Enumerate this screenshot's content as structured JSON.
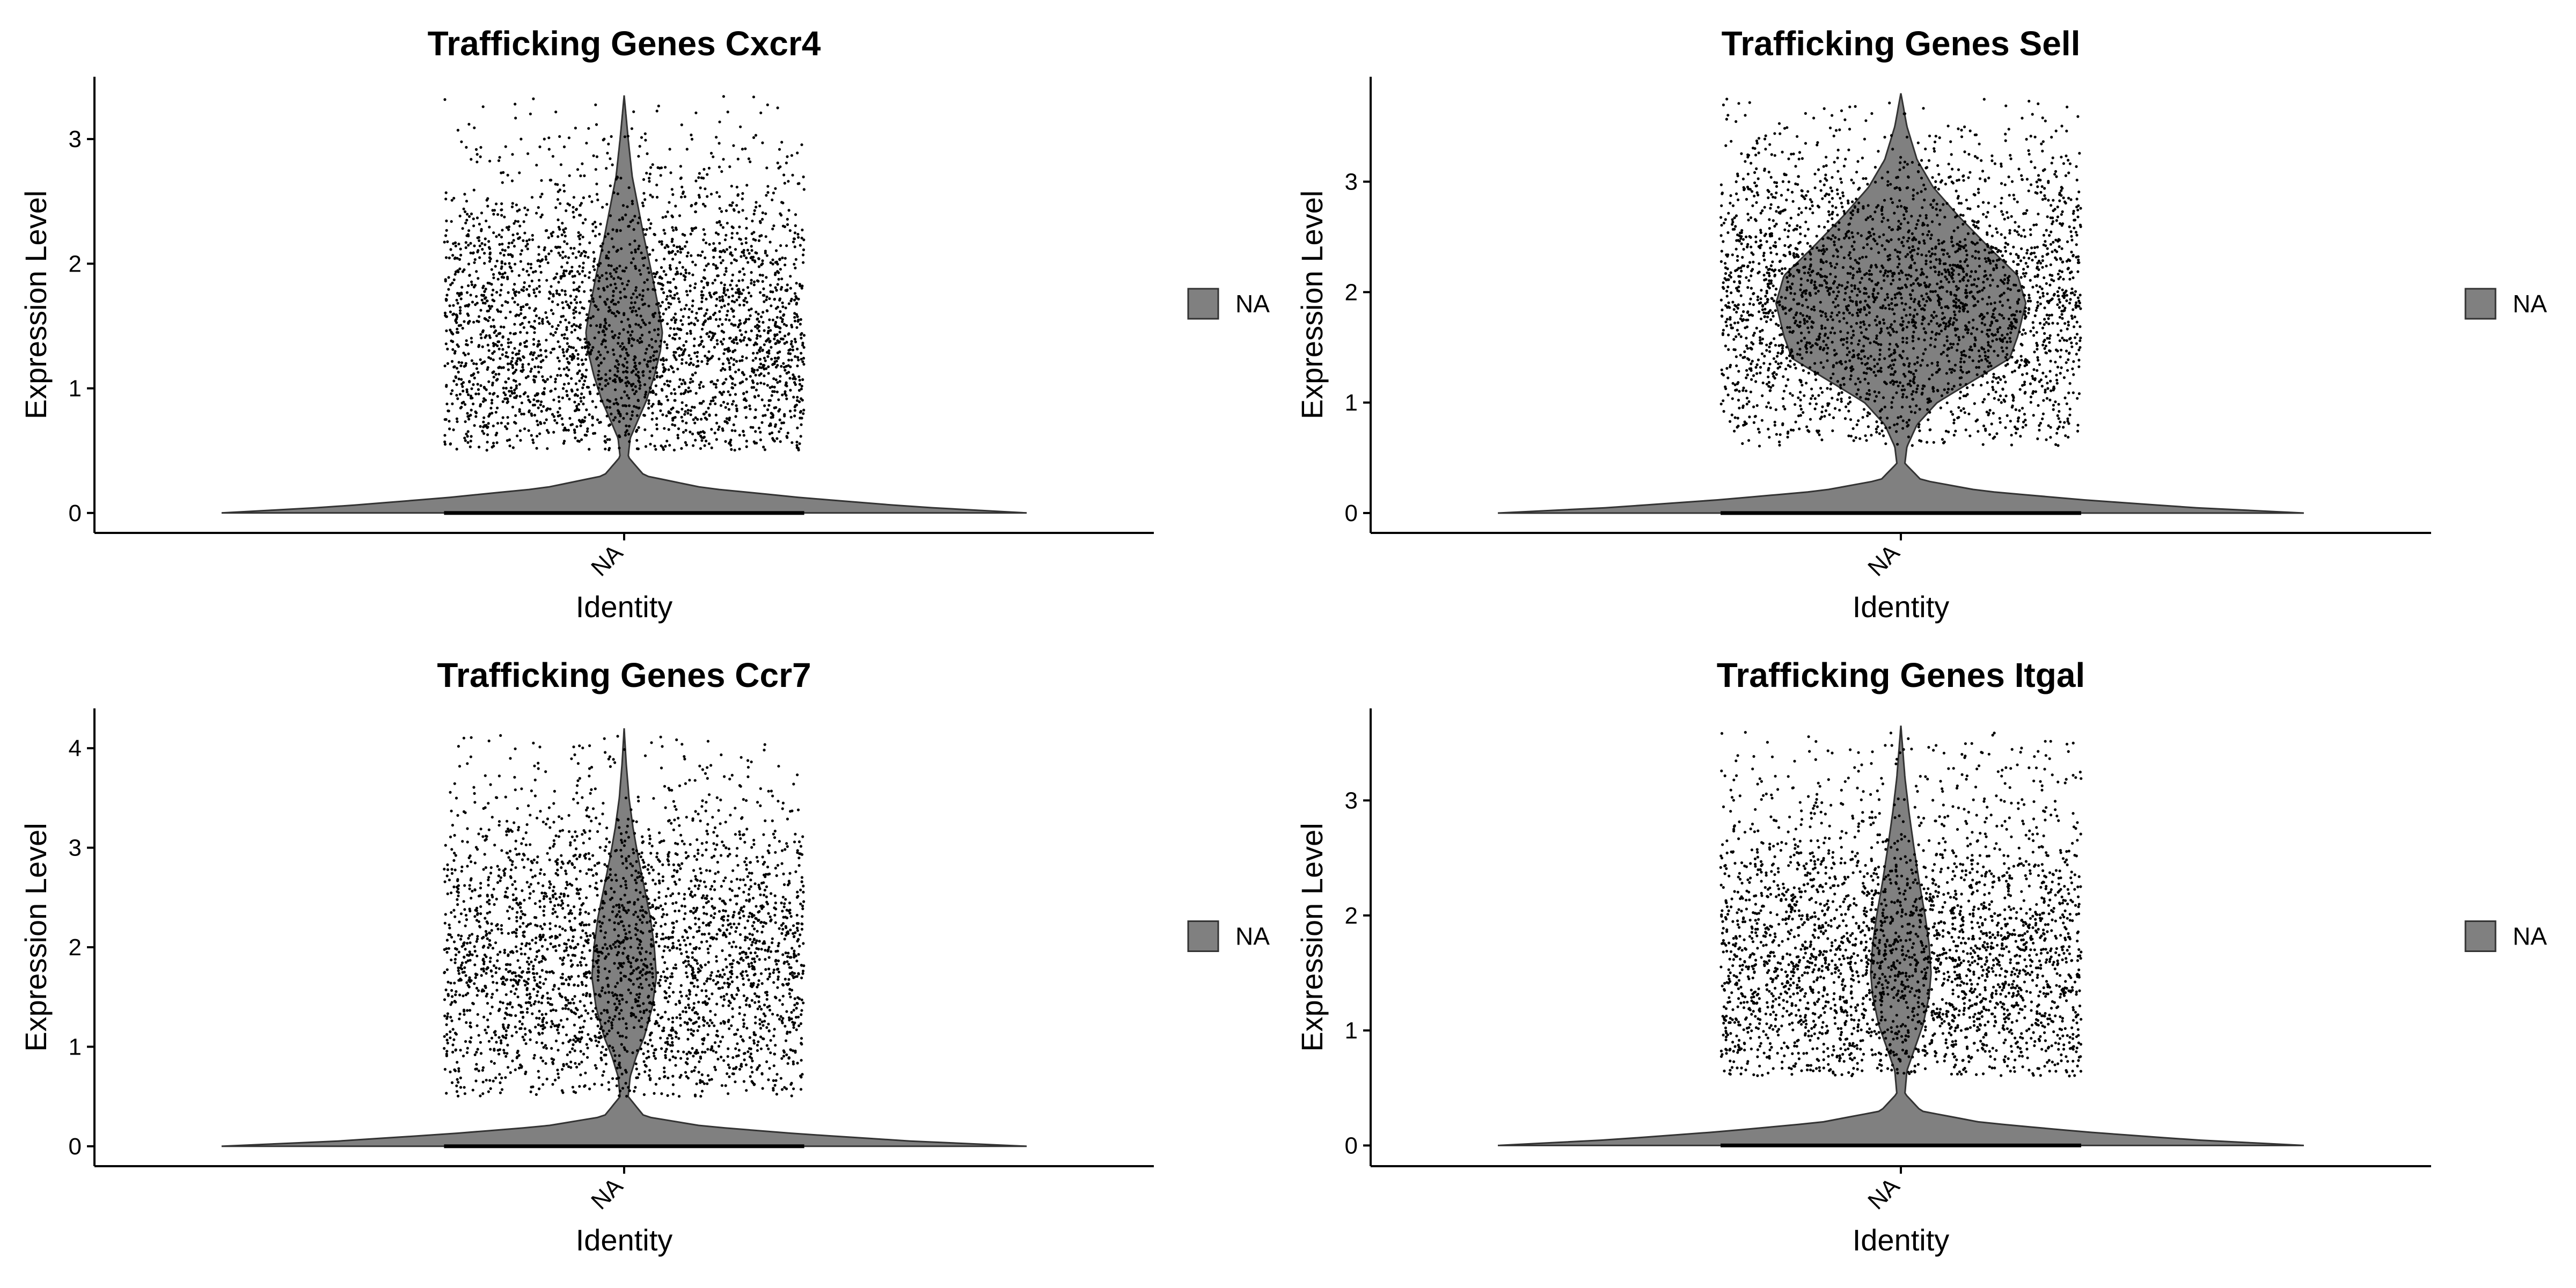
{
  "colors": {
    "violin_fill": "#808080",
    "violin_stroke": "#333333",
    "points": "#000000",
    "axis": "#000000",
    "background": "#ffffff"
  },
  "chart_data": [
    {
      "type": "violin",
      "title": "Trafficking Genes Cxcr4",
      "xlabel": "Identity",
      "ylabel": "Expression Level",
      "categories": [
        "NA"
      ],
      "x_tick_labels": [
        "NA"
      ],
      "y_ticks": [
        0,
        1,
        2,
        3
      ],
      "y_tick_labels": [
        "0",
        "1",
        "2",
        "3"
      ],
      "ylim": [
        -0.16,
        3.5
      ],
      "y_max": 3.35,
      "density_profile": [
        [
          0,
          1.0
        ],
        [
          0.05,
          0.72
        ],
        [
          0.12,
          0.45
        ],
        [
          0.2,
          0.2
        ],
        [
          0.3,
          0.05
        ],
        [
          0.45,
          0.01
        ],
        [
          0.6,
          0.015
        ],
        [
          0.75,
          0.035
        ],
        [
          0.9,
          0.055
        ],
        [
          1.1,
          0.075
        ],
        [
          1.3,
          0.09
        ],
        [
          1.45,
          0.095
        ],
        [
          1.65,
          0.085
        ],
        [
          1.9,
          0.07
        ],
        [
          2.2,
          0.05
        ],
        [
          2.45,
          0.035
        ],
        [
          2.7,
          0.02
        ],
        [
          3.0,
          0.01
        ],
        [
          3.35,
          0.0
        ]
      ],
      "points_range": [
        0.5,
        3.35
      ],
      "points_center": 1.4,
      "legend": [
        {
          "label": "NA",
          "color": "#808080"
        }
      ],
      "legend_placement": "right",
      "grid": false
    },
    {
      "type": "violin",
      "title": "Trafficking Genes Sell",
      "xlabel": "Identity",
      "ylabel": "Expression Level",
      "categories": [
        "NA"
      ],
      "x_tick_labels": [
        "NA"
      ],
      "y_ticks": [
        0,
        1,
        2,
        3
      ],
      "y_tick_labels": [
        "0",
        "1",
        "2",
        "3"
      ],
      "ylim": [
        -0.18,
        3.95
      ],
      "y_max": 3.8,
      "density_profile": [
        [
          0,
          1.0
        ],
        [
          0.05,
          0.72
        ],
        [
          0.12,
          0.45
        ],
        [
          0.2,
          0.2
        ],
        [
          0.3,
          0.05
        ],
        [
          0.45,
          0.01
        ],
        [
          0.6,
          0.015
        ],
        [
          0.8,
          0.04
        ],
        [
          1.0,
          0.09
        ],
        [
          1.2,
          0.18
        ],
        [
          1.4,
          0.27
        ],
        [
          1.6,
          0.29
        ],
        [
          1.9,
          0.31
        ],
        [
          2.15,
          0.29
        ],
        [
          2.4,
          0.22
        ],
        [
          2.7,
          0.14
        ],
        [
          2.95,
          0.08
        ],
        [
          3.2,
          0.04
        ],
        [
          3.5,
          0.015
        ],
        [
          3.8,
          0.0
        ]
      ],
      "points_range": [
        0.6,
        3.75
      ],
      "points_center": 1.9,
      "legend": [
        {
          "label": "NA",
          "color": "#808080"
        }
      ],
      "legend_placement": "right",
      "grid": false
    },
    {
      "type": "violin",
      "title": "Trafficking Genes Ccr7",
      "xlabel": "Identity",
      "ylabel": "Expression Level",
      "categories": [
        "NA"
      ],
      "x_tick_labels": [
        "NA"
      ],
      "y_ticks": [
        0,
        1,
        2,
        3,
        4
      ],
      "y_tick_labels": [
        "0",
        "1",
        "2",
        "3",
        "4"
      ],
      "ylim": [
        -0.2,
        4.4
      ],
      "y_max": 4.2,
      "density_profile": [
        [
          0,
          1.0
        ],
        [
          0.05,
          0.72
        ],
        [
          0.12,
          0.45
        ],
        [
          0.2,
          0.2
        ],
        [
          0.3,
          0.05
        ],
        [
          0.5,
          0.01
        ],
        [
          0.7,
          0.015
        ],
        [
          0.9,
          0.03
        ],
        [
          1.1,
          0.05
        ],
        [
          1.4,
          0.07
        ],
        [
          1.7,
          0.08
        ],
        [
          2.0,
          0.075
        ],
        [
          2.3,
          0.065
        ],
        [
          2.6,
          0.05
        ],
        [
          2.9,
          0.035
        ],
        [
          3.2,
          0.022
        ],
        [
          3.5,
          0.012
        ],
        [
          3.85,
          0.005
        ],
        [
          4.2,
          0.0
        ]
      ],
      "points_range": [
        0.5,
        4.15
      ],
      "points_center": 1.8,
      "legend": [
        {
          "label": "NA",
          "color": "#808080"
        }
      ],
      "legend_placement": "right",
      "grid": false
    },
    {
      "type": "violin",
      "title": "Trafficking Genes Itgal",
      "xlabel": "Identity",
      "ylabel": "Expression Level",
      "categories": [
        "NA"
      ],
      "x_tick_labels": [
        "NA"
      ],
      "y_ticks": [
        0,
        1,
        2,
        3
      ],
      "y_tick_labels": [
        "0",
        "1",
        "2",
        "3"
      ],
      "ylim": [
        -0.18,
        3.8
      ],
      "y_max": 3.65,
      "density_profile": [
        [
          0,
          1.0
        ],
        [
          0.05,
          0.72
        ],
        [
          0.12,
          0.45
        ],
        [
          0.2,
          0.2
        ],
        [
          0.3,
          0.05
        ],
        [
          0.45,
          0.01
        ],
        [
          0.65,
          0.015
        ],
        [
          0.85,
          0.035
        ],
        [
          1.05,
          0.055
        ],
        [
          1.3,
          0.07
        ],
        [
          1.5,
          0.075
        ],
        [
          1.75,
          0.07
        ],
        [
          2.0,
          0.06
        ],
        [
          2.3,
          0.045
        ],
        [
          2.6,
          0.032
        ],
        [
          2.9,
          0.02
        ],
        [
          3.2,
          0.01
        ],
        [
          3.65,
          0.0
        ]
      ],
      "points_range": [
        0.6,
        3.6
      ],
      "points_center": 1.5,
      "legend": [
        {
          "label": "NA",
          "color": "#808080"
        }
      ],
      "legend_placement": "right",
      "grid": false
    }
  ]
}
